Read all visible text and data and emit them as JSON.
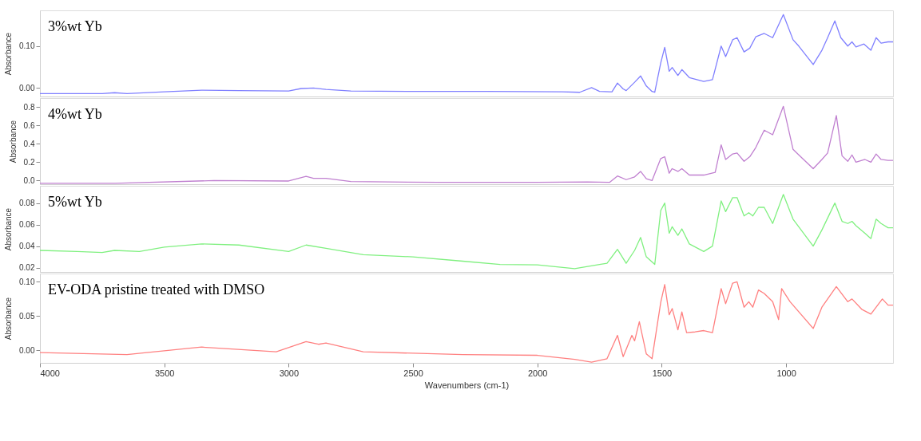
{
  "chart_data": [
    {
      "type": "line",
      "legend": false,
      "tick_labels": "y",
      "ylabel": "Absorbance",
      "xlim": [
        4000,
        570
      ],
      "xticks": [
        4000,
        3500,
        3000,
        2500,
        2000,
        1500,
        1000
      ],
      "ylim": [
        -0.02,
        0.185
      ],
      "yticks": [
        {
          "value": 0,
          "label": "0.00"
        },
        {
          "value": 0.1,
          "label": "0.10"
        }
      ],
      "series": [
        {
          "name": "3%wt Yb",
          "color": "#8080ff",
          "x": [
            4000,
            3750,
            3700,
            3650,
            3500,
            3350,
            3200,
            3000,
            2950,
            2900,
            2850,
            2750,
            2500,
            2200,
            1900,
            1830,
            1782,
            1750,
            1700,
            1678,
            1655,
            1643,
            1609,
            1585,
            1562,
            1539,
            1528,
            1504,
            1488,
            1470,
            1458,
            1435,
            1419,
            1389,
            1331,
            1296,
            1261,
            1243,
            1215,
            1197,
            1169,
            1146,
            1122,
            1088,
            1054,
            1011,
            972,
            949,
            891,
            856,
            833,
            804,
            780,
            752,
            735,
            719,
            687,
            659,
            638,
            618,
            590,
            570
          ],
          "values": [
            -0.013,
            -0.013,
            -0.011,
            -0.013,
            -0.009,
            -0.005,
            -0.006,
            -0.007,
            -0.001,
            0.0,
            -0.003,
            -0.007,
            -0.008,
            -0.008,
            -0.009,
            -0.01,
            0.001,
            -0.008,
            -0.009,
            0.012,
            -0.002,
            -0.006,
            0.014,
            0.029,
            0.005,
            -0.008,
            -0.01,
            0.06,
            0.097,
            0.04,
            0.049,
            0.03,
            0.044,
            0.025,
            0.016,
            0.02,
            0.1,
            0.075,
            0.115,
            0.12,
            0.086,
            0.095,
            0.122,
            0.13,
            0.12,
            0.175,
            0.115,
            0.1,
            0.056,
            0.09,
            0.12,
            0.16,
            0.12,
            0.1,
            0.11,
            0.098,
            0.105,
            0.09,
            0.12,
            0.107,
            0.11,
            0.11
          ]
        }
      ]
    },
    {
      "type": "line",
      "legend": false,
      "tick_labels": "y",
      "ylabel": "Absorbance",
      "xlim": [
        4000,
        570
      ],
      "xticks": [
        4000,
        3500,
        3000,
        2500,
        2000,
        1500,
        1000
      ],
      "ylim": [
        -0.04,
        0.9
      ],
      "yticks": [
        {
          "value": 0,
          "label": "0.0"
        },
        {
          "value": 0.2,
          "label": "0.2"
        },
        {
          "value": 0.4,
          "label": "0.4"
        },
        {
          "value": 0.6,
          "label": "0.6"
        },
        {
          "value": 0.8,
          "label": "0.8"
        }
      ],
      "series": [
        {
          "name": "4%wt Yb",
          "color": "#c080d0",
          "x": [
            4000,
            3700,
            3300,
            3000,
            2930,
            2900,
            2850,
            2750,
            2400,
            2000,
            1800,
            1710,
            1678,
            1643,
            1609,
            1585,
            1562,
            1539,
            1504,
            1488,
            1470,
            1458,
            1435,
            1419,
            1389,
            1331,
            1285,
            1261,
            1243,
            1215,
            1197,
            1169,
            1146,
            1122,
            1088,
            1054,
            1011,
            972,
            949,
            891,
            856,
            833,
            798,
            775,
            752,
            735,
            719,
            683,
            659,
            638,
            618,
            590,
            570
          ],
          "values": [
            -0.03,
            -0.03,
            0.0,
            -0.005,
            0.045,
            0.025,
            0.025,
            -0.01,
            -0.02,
            -0.02,
            -0.015,
            -0.02,
            0.05,
            0.01,
            0.04,
            0.1,
            0.02,
            0.0,
            0.24,
            0.26,
            0.08,
            0.13,
            0.1,
            0.13,
            0.06,
            0.06,
            0.09,
            0.39,
            0.23,
            0.29,
            0.3,
            0.21,
            0.26,
            0.36,
            0.55,
            0.5,
            0.81,
            0.34,
            0.28,
            0.13,
            0.23,
            0.3,
            0.71,
            0.27,
            0.21,
            0.28,
            0.2,
            0.23,
            0.2,
            0.29,
            0.23,
            0.22,
            0.22
          ]
        }
      ]
    },
    {
      "type": "line",
      "legend": false,
      "tick_labels": "y",
      "ylabel": "Absorbance",
      "xlim": [
        4000,
        570
      ],
      "xticks": [
        4000,
        3500,
        3000,
        2500,
        2000,
        1500,
        1000
      ],
      "ylim": [
        0.016,
        0.096
      ],
      "yticks": [
        {
          "value": 0.02,
          "label": "0.02"
        },
        {
          "value": 0.04,
          "label": "0.04"
        },
        {
          "value": 0.06,
          "label": "0.06"
        },
        {
          "value": 0.08,
          "label": "0.08"
        }
      ],
      "series": [
        {
          "name": "5%wt Yb",
          "color": "#80f080",
          "x": [
            4000,
            3850,
            3750,
            3700,
            3600,
            3500,
            3350,
            3200,
            3000,
            2930,
            2850,
            2700,
            2500,
            2300,
            2150,
            2000,
            1850,
            1750,
            1720,
            1678,
            1643,
            1609,
            1585,
            1562,
            1528,
            1504,
            1488,
            1470,
            1458,
            1435,
            1419,
            1389,
            1331,
            1296,
            1261,
            1243,
            1215,
            1197,
            1169,
            1150,
            1134,
            1111,
            1088,
            1054,
            1011,
            972,
            891,
            856,
            804,
            775,
            752,
            735,
            719,
            683,
            659,
            638,
            618,
            590,
            570
          ],
          "values": [
            0.036,
            0.035,
            0.034,
            0.036,
            0.035,
            0.039,
            0.042,
            0.041,
            0.035,
            0.041,
            0.038,
            0.032,
            0.03,
            0.026,
            0.023,
            0.0225,
            0.019,
            0.023,
            0.024,
            0.037,
            0.024,
            0.036,
            0.048,
            0.03,
            0.023,
            0.073,
            0.08,
            0.052,
            0.058,
            0.05,
            0.056,
            0.042,
            0.035,
            0.04,
            0.082,
            0.072,
            0.085,
            0.085,
            0.068,
            0.071,
            0.068,
            0.076,
            0.076,
            0.061,
            0.088,
            0.065,
            0.04,
            0.055,
            0.08,
            0.063,
            0.061,
            0.063,
            0.059,
            0.052,
            0.047,
            0.065,
            0.061,
            0.057,
            0.057
          ]
        }
      ]
    },
    {
      "type": "line",
      "legend": false,
      "ylabel": "Absorbance",
      "xlabel": "Wavenumbers (cm-1)",
      "xlim": [
        4000,
        570
      ],
      "xticks": [
        4000,
        3500,
        3000,
        2500,
        2000,
        1500,
        1000
      ],
      "ylim": [
        -0.018,
        0.112
      ],
      "yticks": [
        {
          "value": 0,
          "label": "0.00"
        },
        {
          "value": 0.05,
          "label": "0.05"
        },
        {
          "value": 0.1,
          "label": "0.10"
        }
      ],
      "series": [
        {
          "name": "EV-ODA pristine treated with DMSO",
          "color": "#ff8080",
          "x": [
            4000,
            3650,
            3350,
            3050,
            2930,
            2880,
            2850,
            2700,
            2300,
            2000,
            1850,
            1782,
            1720,
            1678,
            1655,
            1620,
            1609,
            1590,
            1562,
            1539,
            1504,
            1488,
            1470,
            1458,
            1435,
            1419,
            1400,
            1366,
            1331,
            1296,
            1261,
            1243,
            1215,
            1197,
            1169,
            1150,
            1134,
            1111,
            1088,
            1054,
            1030,
            1018,
            984,
            891,
            856,
            798,
            752,
            735,
            696,
            659,
            613,
            590,
            570
          ],
          "values": [
            -0.003,
            -0.006,
            0.005,
            -0.002,
            0.013,
            0.009,
            0.011,
            -0.002,
            -0.006,
            -0.007,
            -0.013,
            -0.017,
            -0.012,
            0.022,
            -0.009,
            0.022,
            0.014,
            0.042,
            -0.005,
            -0.012,
            0.07,
            0.096,
            0.052,
            0.061,
            0.03,
            0.056,
            0.026,
            0.027,
            0.029,
            0.026,
            0.09,
            0.068,
            0.098,
            0.1,
            0.063,
            0.071,
            0.063,
            0.088,
            0.083,
            0.071,
            0.045,
            0.09,
            0.071,
            0.032,
            0.063,
            0.093,
            0.071,
            0.075,
            0.06,
            0.053,
            0.075,
            0.066,
            0.066
          ]
        }
      ]
    }
  ]
}
